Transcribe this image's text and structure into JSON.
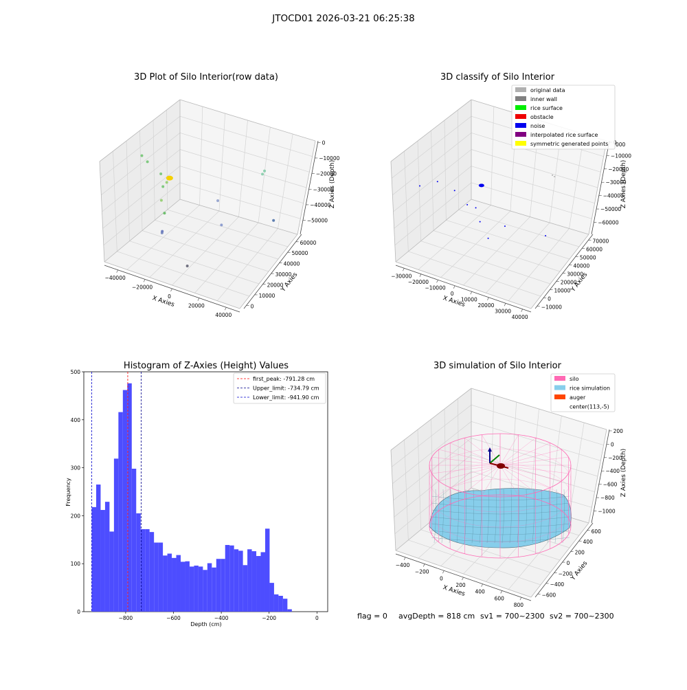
{
  "figure_title": "JTOCD01 2026-03-21 06:25:38",
  "panel1": {
    "title": "3D Plot of Silo Interior(row data)",
    "xlabel": "X Axies",
    "ylabel": "Y Axies",
    "zlabel": "Z Axies (Depth)",
    "x_ticks": [
      "−40000",
      "−20000",
      "0",
      "20000",
      "40000"
    ],
    "y_ticks": [
      "0",
      "10000",
      "20000",
      "30000",
      "40000",
      "50000",
      "60000"
    ],
    "z_ticks": [
      "0",
      "−10000",
      "−20000",
      "−30000",
      "−40000",
      "−50000"
    ]
  },
  "panel2": {
    "title": "3D classify of Silo Interior",
    "xlabel": "X Axies",
    "ylabel": "Y Axies",
    "zlabel": "Z Axies (Depth)",
    "x_ticks": [
      "−30000",
      "−20000",
      "−10000",
      "0",
      "10000",
      "20000",
      "30000",
      "40000"
    ],
    "y_ticks": [
      "−10000",
      "0",
      "10000",
      "20000",
      "30000",
      "40000",
      "50000",
      "60000",
      "70000"
    ],
    "z_ticks": [
      "0",
      "−10000",
      "−20000",
      "−30000",
      "−40000",
      "−50000",
      "−60000"
    ],
    "z_top_partial": "000",
    "legend": [
      {
        "label": "original data",
        "color": "#b0b0b0"
      },
      {
        "label": "inner wall",
        "color": "#808080"
      },
      {
        "label": "rice surface",
        "color": "#00ee00"
      },
      {
        "label": "obstacle",
        "color": "#ee0000"
      },
      {
        "label": "noise",
        "color": "#0000ee"
      },
      {
        "label": "interpolated rice surface",
        "color": "#800080"
      },
      {
        "label": "symmetric generated points",
        "color": "#ffff00"
      }
    ]
  },
  "panel4": {
    "title": "3D simulation of Silo Interior",
    "xlabel": "X Axies",
    "ylabel": "Y Axies",
    "zlabel": "Z Axies (Depth)",
    "x_ticks": [
      "−400",
      "−200",
      "0",
      "200",
      "400",
      "600",
      "800"
    ],
    "y_ticks": [
      "−600",
      "−400",
      "−200",
      "0",
      "200",
      "400",
      "600"
    ],
    "z_ticks": [
      "200",
      "0",
      "−200",
      "−400",
      "−600",
      "−800",
      "−1000"
    ],
    "legend": [
      {
        "label": "silo",
        "color": "#ff69b4"
      },
      {
        "label": "rice simulation",
        "color": "#87ceeb"
      },
      {
        "label": "auger",
        "color": "#ff4500"
      },
      {
        "label": "center(113,-5)",
        "color": ""
      }
    ]
  },
  "status_line": {
    "flag": "flag = 0",
    "avg_depth": "avgDepth = 818 cm",
    "sv1": "sv1 = 700~2300",
    "sv2": "sv2 = 700~2300"
  },
  "chart_data": [
    {
      "type": "scatter",
      "title": "3D Plot of Silo Interior(row data)",
      "xlabel": "X Axies",
      "ylabel": "Y Axies",
      "zlabel": "Z Axies (Depth)",
      "xlim": [
        -45000,
        45000
      ],
      "ylim": [
        0,
        65000
      ],
      "zlim": [
        -55000,
        2000
      ],
      "points": [
        {
          "x": -42000,
          "y": 30000,
          "z": -10000
        },
        {
          "x": -40000,
          "y": 32000,
          "z": -14000
        },
        {
          "x": -28000,
          "y": 28000,
          "z": -15000
        },
        {
          "x": -22000,
          "y": 22000,
          "z": -17000
        },
        {
          "x": -18000,
          "y": 20000,
          "z": -12000
        },
        {
          "x": -20000,
          "y": 18000,
          "z": -22000
        },
        {
          "x": -12000,
          "y": 10000,
          "z": -22000
        },
        {
          "x": 5000,
          "y": 35000,
          "z": -25000
        },
        {
          "x": 20000,
          "y": 55000,
          "z": -18000
        },
        {
          "x": 18000,
          "y": 60000,
          "z": -20000
        },
        {
          "x": -10000,
          "y": 5000,
          "z": -30000
        },
        {
          "x": 15000,
          "y": 25000,
          "z": -30000
        },
        {
          "x": -15000,
          "y": 12000,
          "z": -35000
        },
        {
          "x": 40000,
          "y": 40000,
          "z": -30000
        },
        {
          "x": 10000,
          "y": 0,
          "z": -40000
        }
      ]
    },
    {
      "type": "scatter",
      "title": "3D classify of Silo Interior",
      "xlabel": "X Axies",
      "ylabel": "Y Axies",
      "zlabel": "Z Axies (Depth)",
      "xlim": [
        -35000,
        45000
      ],
      "ylim": [
        -10000,
        75000
      ],
      "zlim": [
        -65000,
        5000
      ],
      "series": [
        {
          "name": "noise",
          "points": [
            {
              "x": -30000,
              "y": 10000,
              "z": -20000
            },
            {
              "x": -25000,
              "y": 20000,
              "z": -20000
            },
            {
              "x": -15000,
              "y": 20000,
              "z": -22000
            },
            {
              "x": -5000,
              "y": 15000,
              "z": -25000
            },
            {
              "x": 0,
              "y": 15000,
              "z": -25000
            },
            {
              "x": 5000,
              "y": 10000,
              "z": -30000
            },
            {
              "x": 10000,
              "y": 10000,
              "z": -40000
            },
            {
              "x": 15000,
              "y": 20000,
              "z": -35000
            },
            {
              "x": 35000,
              "y": 30000,
              "z": -40000
            }
          ]
        },
        {
          "name": "original data",
          "points": [
            {
              "x": 25000,
              "y": 55000,
              "z": -15000
            },
            {
              "x": 25000,
              "y": 58000,
              "z": -18000
            }
          ]
        }
      ]
    },
    {
      "type": "bar",
      "title": "Histogram of Z-Axies (Height) Values",
      "xlabel": "Depth (cm)",
      "ylabel": "Frequency",
      "xlim": [
        -975,
        45
      ],
      "ylim": [
        0,
        500
      ],
      "x_ticks": [
        -800,
        -600,
        -400,
        -200,
        0
      ],
      "y_ticks": [
        0,
        100,
        200,
        300,
        400,
        500
      ],
      "bins_start": -941.9,
      "bin_width": 18.6,
      "values": [
        218,
        265,
        212,
        229,
        167,
        319,
        416,
        462,
        476,
        298,
        205,
        172,
        172,
        166,
        144,
        144,
        117,
        121,
        112,
        118,
        104,
        105,
        94,
        96,
        94,
        87,
        101,
        92,
        110,
        110,
        139,
        138,
        130,
        127,
        97,
        130,
        126,
        116,
        124,
        173,
        60,
        36,
        33,
        27,
        5
      ],
      "vlines": [
        {
          "label": "first_peak: -791.28 cm",
          "value": -791.28,
          "color": "#ff0000"
        },
        {
          "label": "Upper_limit: -734.79 cm",
          "value": -734.79,
          "color": "#00008b"
        },
        {
          "label": "Lower_limit: -941.90 cm",
          "value": -941.9,
          "color": "#0000cd"
        }
      ],
      "bar_color": "#4d4dff"
    },
    {
      "type": "surface",
      "title": "3D simulation of Silo Interior",
      "xlabel": "X Axies",
      "ylabel": "Y Axies",
      "zlabel": "Z Axies (Depth)",
      "xlim": [
        -500,
        800
      ],
      "ylim": [
        -700,
        700
      ],
      "zlim": [
        -1000,
        300
      ],
      "center": [
        113,
        -5
      ],
      "series": [
        {
          "name": "silo"
        },
        {
          "name": "rice simulation"
        },
        {
          "name": "auger"
        }
      ]
    }
  ]
}
